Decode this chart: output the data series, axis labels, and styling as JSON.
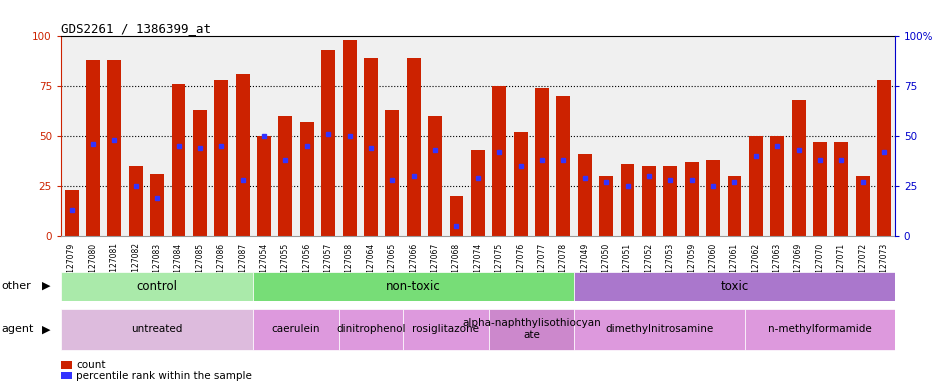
{
  "title": "GDS2261 / 1386399_at",
  "samples": [
    "GSM127079",
    "GSM127080",
    "GSM127081",
    "GSM127082",
    "GSM127083",
    "GSM127084",
    "GSM127085",
    "GSM127086",
    "GSM127087",
    "GSM127054",
    "GSM127055",
    "GSM127056",
    "GSM127057",
    "GSM127058",
    "GSM127064",
    "GSM127065",
    "GSM127066",
    "GSM127067",
    "GSM127068",
    "GSM127074",
    "GSM127075",
    "GSM127076",
    "GSM127077",
    "GSM127078",
    "GSM127049",
    "GSM127050",
    "GSM127051",
    "GSM127052",
    "GSM127053",
    "GSM127059",
    "GSM127060",
    "GSM127061",
    "GSM127062",
    "GSM127063",
    "GSM127069",
    "GSM127070",
    "GSM127071",
    "GSM127072",
    "GSM127073"
  ],
  "count_values": [
    23,
    88,
    88,
    35,
    31,
    76,
    63,
    78,
    81,
    50,
    60,
    57,
    93,
    98,
    89,
    63,
    89,
    60,
    20,
    43,
    75,
    52,
    74,
    70,
    41,
    30,
    36,
    35,
    35,
    37,
    38,
    30,
    50,
    50,
    68,
    47,
    47,
    30,
    78
  ],
  "percentile_values": [
    13,
    46,
    48,
    25,
    19,
    45,
    44,
    45,
    28,
    50,
    38,
    45,
    51,
    50,
    44,
    28,
    30,
    43,
    5,
    29,
    42,
    35,
    38,
    38,
    29,
    27,
    25,
    30,
    28,
    28,
    25,
    27,
    40,
    45,
    43,
    38,
    38,
    27,
    42
  ],
  "bar_color": "#CC2200",
  "dot_color": "#3333FF",
  "ylim": [
    0,
    100
  ],
  "yticks": [
    0,
    25,
    50,
    75,
    100
  ],
  "groups_other": [
    {
      "label": "control",
      "start": 0,
      "end": 8,
      "color": "#AAEAAA"
    },
    {
      "label": "non-toxic",
      "start": 9,
      "end": 23,
      "color": "#77DD77"
    },
    {
      "label": "toxic",
      "start": 24,
      "end": 38,
      "color": "#AA77CC"
    }
  ],
  "groups_agent": [
    {
      "label": "untreated",
      "start": 0,
      "end": 8,
      "color": "#DDBBDD"
    },
    {
      "label": "caerulein",
      "start": 9,
      "end": 12,
      "color": "#DD99DD"
    },
    {
      "label": "dinitrophenol",
      "start": 13,
      "end": 15,
      "color": "#DD99DD"
    },
    {
      "label": "rosiglitazone",
      "start": 16,
      "end": 19,
      "color": "#DD99DD"
    },
    {
      "label": "alpha-naphthylisothiocyan\nate",
      "start": 20,
      "end": 23,
      "color": "#CC88CC"
    },
    {
      "label": "dimethylnitrosamine",
      "start": 24,
      "end": 31,
      "color": "#DD99DD"
    },
    {
      "label": "n-methylformamide",
      "start": 32,
      "end": 38,
      "color": "#DD99DD"
    }
  ],
  "legend_count_color": "#CC2200",
  "legend_dot_color": "#3333FF",
  "right_axis_color": "#0000CC",
  "left_axis_color": "#CC2200",
  "bg_color": "#F0F0F0"
}
